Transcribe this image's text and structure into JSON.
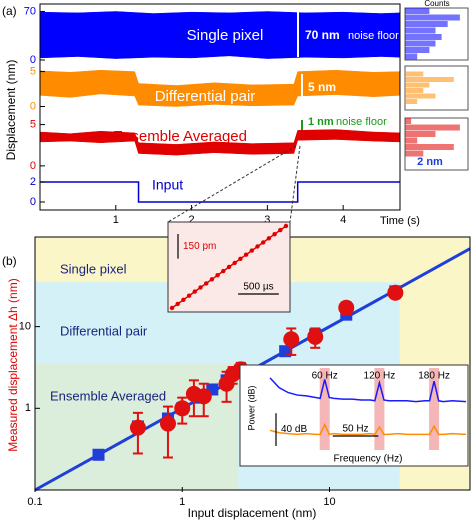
{
  "chart_data": [
    {
      "type": "band",
      "panel_label": "(a)",
      "ylabel": "Displacement (nm)",
      "label": "Single pixel",
      "annotation": "70 nm",
      "annotation_note": "noise floor",
      "hist_title": "Counts",
      "color": "#0000ff",
      "xlim": [
        0,
        4.75
      ],
      "ylim": [
        0,
        75
      ],
      "yticks": [
        0,
        70
      ],
      "x": [
        0,
        0.5,
        1,
        1.5,
        2,
        2.5,
        3,
        3.5,
        4,
        4.5,
        4.75
      ],
      "upper": [
        69,
        68,
        70,
        67,
        69,
        68,
        70,
        68,
        69,
        67,
        68
      ],
      "lower": [
        3,
        5,
        2,
        4,
        3,
        6,
        2,
        4,
        3,
        5,
        4
      ],
      "histogram": [
        2,
        4,
        5,
        6,
        5,
        7,
        9,
        4
      ],
      "hist_lim": [
        0,
        10
      ]
    },
    {
      "type": "band",
      "label": "Differential pair",
      "annotation": "5 nm",
      "color": "#ff8c00",
      "xlim": [
        0,
        4.75
      ],
      "ylim": [
        -0.5,
        5.8
      ],
      "yticks": [
        0,
        5
      ],
      "x": [
        0,
        0.4,
        0.8,
        1.25,
        1.3,
        1.8,
        2.3,
        2.8,
        3.35,
        3.4,
        3.9,
        4.4,
        4.75
      ],
      "upper": [
        5.1,
        4.9,
        5.2,
        5.0,
        3.3,
        3.0,
        3.4,
        3.1,
        3.2,
        5.0,
        5.2,
        4.9,
        5.0
      ],
      "lower": [
        1.6,
        1.3,
        1.8,
        1.5,
        0.2,
        0.0,
        0.3,
        0.1,
        0.2,
        1.5,
        1.7,
        1.4,
        1.6
      ],
      "histogram": [
        0,
        2,
        5,
        3,
        4,
        8,
        3,
        0
      ],
      "hist_lim": [
        0,
        10
      ]
    },
    {
      "type": "band",
      "label": "Ensemble Averaged",
      "annotation": "1 nm",
      "annotation_note": "noise floor",
      "hist_annotation": "2 nm",
      "color": "#e00000",
      "xlim": [
        0,
        4.75
      ],
      "ylim": [
        -0.5,
        5.8
      ],
      "yticks": [
        0,
        5
      ],
      "x": [
        0,
        0.4,
        0.8,
        1.25,
        1.3,
        1.8,
        2.3,
        2.8,
        3.35,
        3.4,
        3.9,
        4.4,
        4.75
      ],
      "upper": [
        4.1,
        3.9,
        4.2,
        4.0,
        2.8,
        2.6,
        2.9,
        2.7,
        2.8,
        4.3,
        4.4,
        4.1,
        4.0
      ],
      "lower": [
        2.9,
        3.0,
        2.8,
        3.0,
        1.5,
        1.3,
        1.6,
        1.4,
        1.5,
        3.1,
        3.2,
        3.0,
        2.9
      ],
      "histogram": [
        0,
        0,
        3,
        8,
        2,
        5,
        9,
        1
      ],
      "hist_lim": [
        0,
        10
      ]
    },
    {
      "type": "line",
      "label": "Input",
      "xlabel": "Time (s)",
      "color": "#0000cc",
      "xlim": [
        0,
        4.75
      ],
      "ylim": [
        -0.6,
        2.6
      ],
      "yticks": [
        0,
        2
      ],
      "xticks": [
        1,
        2,
        3,
        4
      ],
      "x": [
        0,
        1.3,
        1.3,
        3.4,
        3.4,
        4.75
      ],
      "values": [
        2,
        2,
        0,
        0,
        2,
        2
      ]
    },
    {
      "type": "line",
      "markers": true,
      "color": "#e00000",
      "xlim": [
        0,
        1400
      ],
      "ylim": [
        0,
        500
      ],
      "yscale": 150,
      "yscale_label": "150 pm",
      "xscale": 500,
      "xscale_label": "500 µs",
      "x": [
        0,
        70,
        140,
        210,
        280,
        350,
        420,
        490,
        560,
        630,
        700,
        770,
        840,
        910,
        980,
        1050,
        1120,
        1190,
        1260,
        1330,
        1400
      ],
      "values": [
        0,
        25,
        50,
        75,
        100,
        125,
        150,
        175,
        200,
        225,
        250,
        275,
        300,
        325,
        350,
        375,
        400,
        425,
        450,
        475,
        500
      ]
    },
    {
      "type": "scatter",
      "panel_label": "(b)",
      "xlabel": "Input displacement (nm)",
      "ylabel": "Measured displacement Δh (nm)",
      "log_x": true,
      "log_y": true,
      "xlim": [
        0.1,
        90
      ],
      "ylim": [
        0.1,
        125
      ],
      "xticks": [
        0.1,
        1,
        10
      ],
      "yticks": [
        1,
        10
      ],
      "regions": [
        {
          "name": "Single pixel",
          "color": "#fbf6c8",
          "xmax": 90,
          "ymax": 125
        },
        {
          "name": "Differential pair",
          "color": "#d3f1f7",
          "xmax": 30,
          "ymax": 35
        },
        {
          "name": "Ensemble Averaged",
          "color": "#dbeedc",
          "xmax": 2.4,
          "ymax": 3.5
        }
      ],
      "series": [
        {
          "marker": "line",
          "color": "#1f3fd8",
          "x": [
            0.1,
            90
          ],
          "values": [
            0.1,
            90
          ]
        },
        {
          "marker": "square",
          "color": "#1f3fd8",
          "x": [
            0.27,
            0.5,
            0.8,
            1.0,
            1.3,
            1.6,
            2.0,
            2.5,
            5.0,
            8.0,
            13,
            28
          ],
          "values": [
            0.27,
            0.6,
            0.75,
            1.0,
            1.35,
            1.7,
            2.2,
            2.8,
            5.0,
            8.0,
            14,
            27
          ]
        },
        {
          "marker": "circle",
          "color": "#e01010",
          "x": [
            0.5,
            0.8,
            1.0,
            1.2,
            1.4,
            2.0,
            2.2,
            2.5,
            5.5,
            8.0,
            13,
            28
          ],
          "values": [
            0.58,
            0.65,
            1.0,
            1.5,
            1.4,
            2.0,
            2.6,
            3.0,
            7.0,
            7.5,
            17,
            26
          ],
          "errors": [
            0.3,
            0.4,
            0.35,
            0.7,
            0.6,
            0.8,
            0.6,
            0.6,
            2.5,
            2.0,
            3.0,
            1.5
          ]
        }
      ]
    },
    {
      "type": "line",
      "xlabel": "Frequency (Hz)",
      "ylabel": "Power (dB)",
      "xlim": [
        0,
        215
      ],
      "ylim": [
        0,
        100
      ],
      "peaks": [
        60,
        120,
        180
      ],
      "peak_labels": [
        "60 Hz",
        "120 Hz",
        "180 Hz"
      ],
      "peak_color": "#f4b6b6",
      "yscale": 40,
      "yscale_label": "40 dB",
      "xscale": 50,
      "xscale_label": "50 Hz",
      "x": [
        0,
        10,
        20,
        30,
        40,
        50,
        55,
        60,
        65,
        70,
        80,
        90,
        100,
        110,
        115,
        120,
        125,
        130,
        140,
        150,
        160,
        170,
        175,
        180,
        185,
        190,
        200,
        215
      ],
      "series": [
        {
          "color": "#1a1aff",
          "values": [
            88,
            76,
            70,
            67,
            66,
            64,
            63,
            86,
            64,
            63,
            62,
            62,
            61,
            61,
            60,
            82,
            61,
            60,
            60,
            60,
            59,
            60,
            60,
            84,
            60,
            59,
            60,
            59
          ]
        },
        {
          "color": "#ff8c00",
          "values": [
            24,
            21,
            20,
            19,
            20,
            19,
            19,
            31,
            19,
            20,
            19,
            19,
            19,
            20,
            19,
            28,
            19,
            19,
            20,
            19,
            19,
            19,
            19,
            29,
            19,
            19,
            20,
            19
          ]
        }
      ]
    }
  ]
}
